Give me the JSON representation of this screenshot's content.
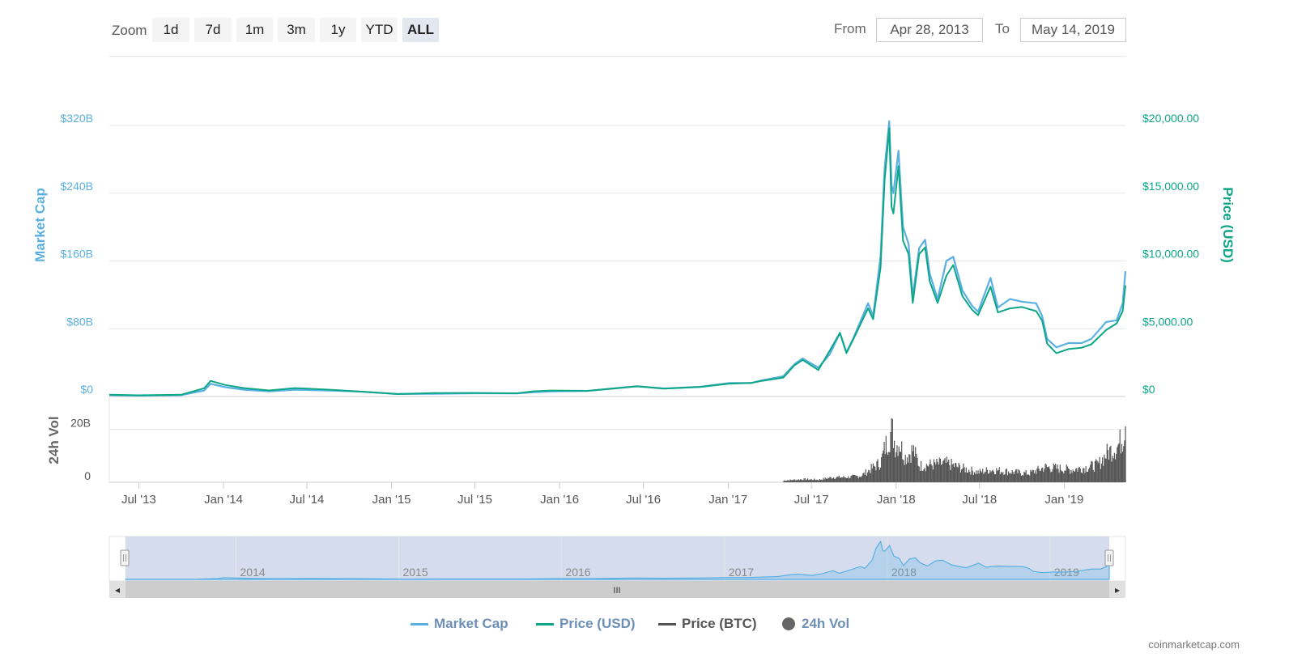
{
  "toolbar": {
    "zoom_label": "Zoom",
    "zoom_buttons": [
      "1d",
      "7d",
      "1m",
      "3m",
      "1y",
      "YTD",
      "ALL"
    ],
    "active_zoom": "ALL",
    "from_label": "From",
    "from_value": "Apr 28, 2013",
    "to_label": "To",
    "to_value": "May 14, 2019"
  },
  "chart_data": {
    "type": "line",
    "title": "",
    "x_start": "2013-04-28",
    "x_end": "2019-05-14",
    "x_tick_labels": [
      "Jul '13",
      "Jan '14",
      "Jul '14",
      "Jan '15",
      "Jul '15",
      "Jan '16",
      "Jul '16",
      "Jan '17",
      "Jul '17",
      "Jan '18",
      "Jul '18",
      "Jan '19"
    ],
    "x_ticks": [
      "2013-07-01",
      "2014-01-01",
      "2014-07-01",
      "2015-01-01",
      "2015-07-01",
      "2016-01-01",
      "2016-07-01",
      "2017-01-01",
      "2017-07-01",
      "2018-01-01",
      "2018-07-01",
      "2019-01-01"
    ],
    "left_axis": {
      "label": "Market Cap",
      "ticks": [
        "$0",
        "$80B",
        "$160B",
        "$240B",
        "$320B"
      ],
      "tick_values": [
        0,
        80,
        160,
        240,
        320
      ],
      "unit": "billion USD",
      "range": [
        0,
        320
      ]
    },
    "right_axis": {
      "label": "Price (USD)",
      "ticks": [
        "$0",
        "$5,000.00",
        "$10,000.00",
        "$15,000.00",
        "$20,000.00"
      ],
      "tick_values": [
        0,
        5000,
        10000,
        15000,
        20000
      ],
      "range": [
        0,
        20000
      ]
    },
    "volume_axis": {
      "label": "24h Vol",
      "ticks": [
        "0",
        "20B"
      ],
      "tick_values": [
        0,
        20
      ],
      "unit": "billion USD",
      "range": [
        0,
        30
      ]
    },
    "series": [
      {
        "name": "Market Cap",
        "color": "#5ab0e2",
        "x": [
          "2013-04-28",
          "2013-07-01",
          "2013-10-01",
          "2013-11-20",
          "2013-12-04",
          "2014-01-05",
          "2014-02-15",
          "2014-04-10",
          "2014-06-05",
          "2014-08-20",
          "2014-11-01",
          "2015-01-14",
          "2015-04-01",
          "2015-07-01",
          "2015-10-01",
          "2015-11-04",
          "2015-12-15",
          "2016-03-01",
          "2016-06-17",
          "2016-08-15",
          "2016-11-01",
          "2017-01-04",
          "2017-02-20",
          "2017-03-15",
          "2017-05-01",
          "2017-05-25",
          "2017-06-12",
          "2017-07-16",
          "2017-08-10",
          "2017-09-01",
          "2017-09-15",
          "2017-10-01",
          "2017-11-01",
          "2017-11-12",
          "2017-11-28",
          "2017-12-07",
          "2017-12-17",
          "2017-12-22",
          "2017-12-26",
          "2018-01-06",
          "2018-01-16",
          "2018-01-28",
          "2018-02-06",
          "2018-02-20",
          "2018-03-05",
          "2018-03-15",
          "2018-04-01",
          "2018-04-20",
          "2018-05-05",
          "2018-05-25",
          "2018-06-15",
          "2018-06-28",
          "2018-07-25",
          "2018-08-10",
          "2018-09-05",
          "2018-10-01",
          "2018-11-01",
          "2018-11-14",
          "2018-11-25",
          "2018-12-15",
          "2019-01-10",
          "2019-02-08",
          "2019-03-01",
          "2019-04-02",
          "2019-04-25",
          "2019-05-08",
          "2019-05-14"
        ],
        "values": [
          1.6,
          1.0,
          1.6,
          7,
          15,
          11,
          8,
          6,
          8,
          7,
          5.5,
          3,
          3.2,
          3.8,
          3.6,
          5,
          6,
          6.5,
          12,
          9.5,
          11.5,
          16,
          16,
          19,
          24,
          38,
          45,
          34,
          50,
          75,
          52,
          70,
          110,
          95,
          165,
          270,
          325,
          250,
          240,
          290,
          200,
          180,
          118,
          175,
          185,
          145,
          115,
          160,
          165,
          125,
          107,
          100,
          140,
          105,
          115,
          112,
          110,
          95,
          68,
          58,
          63,
          63,
          68,
          88,
          90,
          110,
          148
        ],
        "unit": "billion USD"
      },
      {
        "name": "Price (USD)",
        "color": "#0da687",
        "x": [
          "2013-04-28",
          "2013-07-01",
          "2013-10-01",
          "2013-11-20",
          "2013-12-04",
          "2014-01-05",
          "2014-02-15",
          "2014-04-10",
          "2014-06-05",
          "2014-08-20",
          "2014-11-01",
          "2015-01-14",
          "2015-04-01",
          "2015-07-01",
          "2015-10-01",
          "2015-11-04",
          "2015-12-15",
          "2016-03-01",
          "2016-06-17",
          "2016-08-15",
          "2016-11-01",
          "2017-01-04",
          "2017-02-20",
          "2017-03-15",
          "2017-05-01",
          "2017-05-25",
          "2017-06-12",
          "2017-07-16",
          "2017-08-10",
          "2017-09-01",
          "2017-09-15",
          "2017-10-01",
          "2017-11-01",
          "2017-11-12",
          "2017-11-28",
          "2017-12-07",
          "2017-12-17",
          "2017-12-22",
          "2017-12-26",
          "2018-01-06",
          "2018-01-16",
          "2018-01-28",
          "2018-02-06",
          "2018-02-20",
          "2018-03-05",
          "2018-03-15",
          "2018-04-01",
          "2018-04-20",
          "2018-05-05",
          "2018-05-25",
          "2018-06-15",
          "2018-06-28",
          "2018-07-25",
          "2018-08-10",
          "2018-09-05",
          "2018-10-01",
          "2018-11-01",
          "2018-11-14",
          "2018-11-25",
          "2018-12-15",
          "2019-01-10",
          "2019-02-08",
          "2019-03-01",
          "2019-04-02",
          "2019-04-25",
          "2019-05-08",
          "2019-05-14"
        ],
        "values": [
          135,
          90,
          130,
          600,
          1150,
          850,
          620,
          450,
          620,
          500,
          350,
          180,
          250,
          260,
          240,
          380,
          440,
          420,
          750,
          580,
          700,
          950,
          1000,
          1150,
          1400,
          2300,
          2700,
          1950,
          3400,
          4700,
          3200,
          4300,
          6500,
          5700,
          9500,
          16000,
          19800,
          14000,
          13500,
          17000,
          11500,
          10500,
          6900,
          10500,
          11000,
          8500,
          6900,
          8900,
          9700,
          7400,
          6400,
          6000,
          8100,
          6200,
          6500,
          6600,
          6300,
          5600,
          3900,
          3200,
          3500,
          3600,
          3850,
          4900,
          5400,
          6300,
          8200
        ]
      }
    ],
    "volume": {
      "name": "24h Vol",
      "color": "#555555",
      "x": [
        "2017-05-01",
        "2017-06-12",
        "2017-07-16",
        "2017-08-15",
        "2017-09-15",
        "2017-10-15",
        "2017-11-12",
        "2017-11-28",
        "2017-12-07",
        "2017-12-14",
        "2017-12-22",
        "2017-12-30",
        "2018-01-06",
        "2018-01-20",
        "2018-02-06",
        "2018-02-20",
        "2018-03-15",
        "2018-04-20",
        "2018-05-25",
        "2018-06-28",
        "2018-07-25",
        "2018-08-20",
        "2018-09-15",
        "2018-10-15",
        "2018-11-20",
        "2018-12-20",
        "2019-01-15",
        "2019-02-20",
        "2019-03-15",
        "2019-04-05",
        "2019-04-25",
        "2019-05-08",
        "2019-05-14"
      ],
      "values": [
        0.7,
        1.2,
        1.0,
        2,
        2,
        2.5,
        6,
        8,
        14,
        17,
        21,
        14,
        16,
        10,
        13,
        6.5,
        7,
        7.5,
        5.5,
        4,
        5,
        4.5,
        4,
        3.5,
        6,
        5.5,
        5,
        6,
        7,
        12,
        14,
        18,
        27
      ]
    },
    "legend": [
      {
        "name": "Market Cap",
        "color": "#5ab0e2",
        "marker": "line"
      },
      {
        "name": "Price (USD)",
        "color": "#0da687",
        "marker": "line"
      },
      {
        "name": "Price (BTC)",
        "color": "#555555",
        "marker": "line"
      },
      {
        "name": "24h Vol",
        "color": "#666666",
        "marker": "dot"
      }
    ],
    "legend_position": "bottom-center",
    "grid": true,
    "navigator_labels": [
      "2014",
      "2015",
      "2016",
      "2017",
      "2018",
      "2019"
    ],
    "navigator_ticks": [
      "2014-01-01",
      "2015-01-01",
      "2016-01-01",
      "2017-01-01",
      "2018-01-01",
      "2019-01-01"
    ]
  },
  "navigator": {
    "scroll_thumb_glyph": "III",
    "left_arrow": "◂",
    "right_arrow": "▸"
  },
  "credit": "coinmarketcap.com"
}
